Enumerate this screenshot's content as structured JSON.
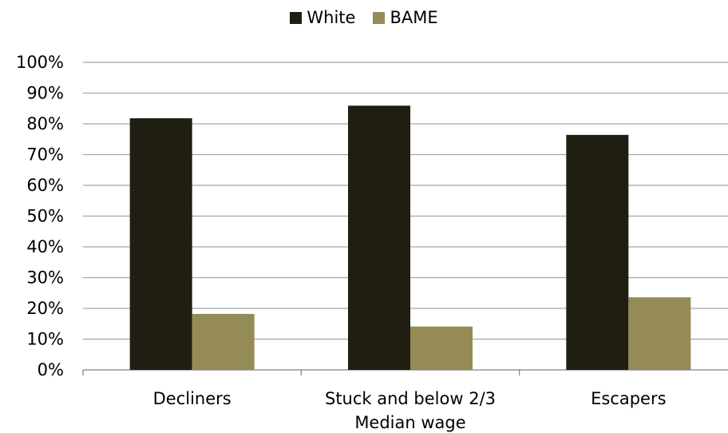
{
  "chart_data": {
    "type": "bar",
    "categories": [
      [
        "Decliners"
      ],
      [
        "Stuck and below 2/3",
        "Median wage"
      ],
      [
        "Escapers"
      ]
    ],
    "series": [
      {
        "name": "White",
        "values": [
          81.8,
          85.9,
          76.4
        ],
        "color": "#201e12"
      },
      {
        "name": "BAME",
        "values": [
          18.2,
          14.1,
          23.6
        ],
        "color": "#958b56"
      }
    ],
    "yticks": [
      "0%",
      "10%",
      "20%",
      "30%",
      "40%",
      "50%",
      "60%",
      "70%",
      "80%",
      "90%",
      "100%"
    ],
    "ylim": [
      0,
      100
    ],
    "grid": true,
    "legend_position": "top"
  }
}
